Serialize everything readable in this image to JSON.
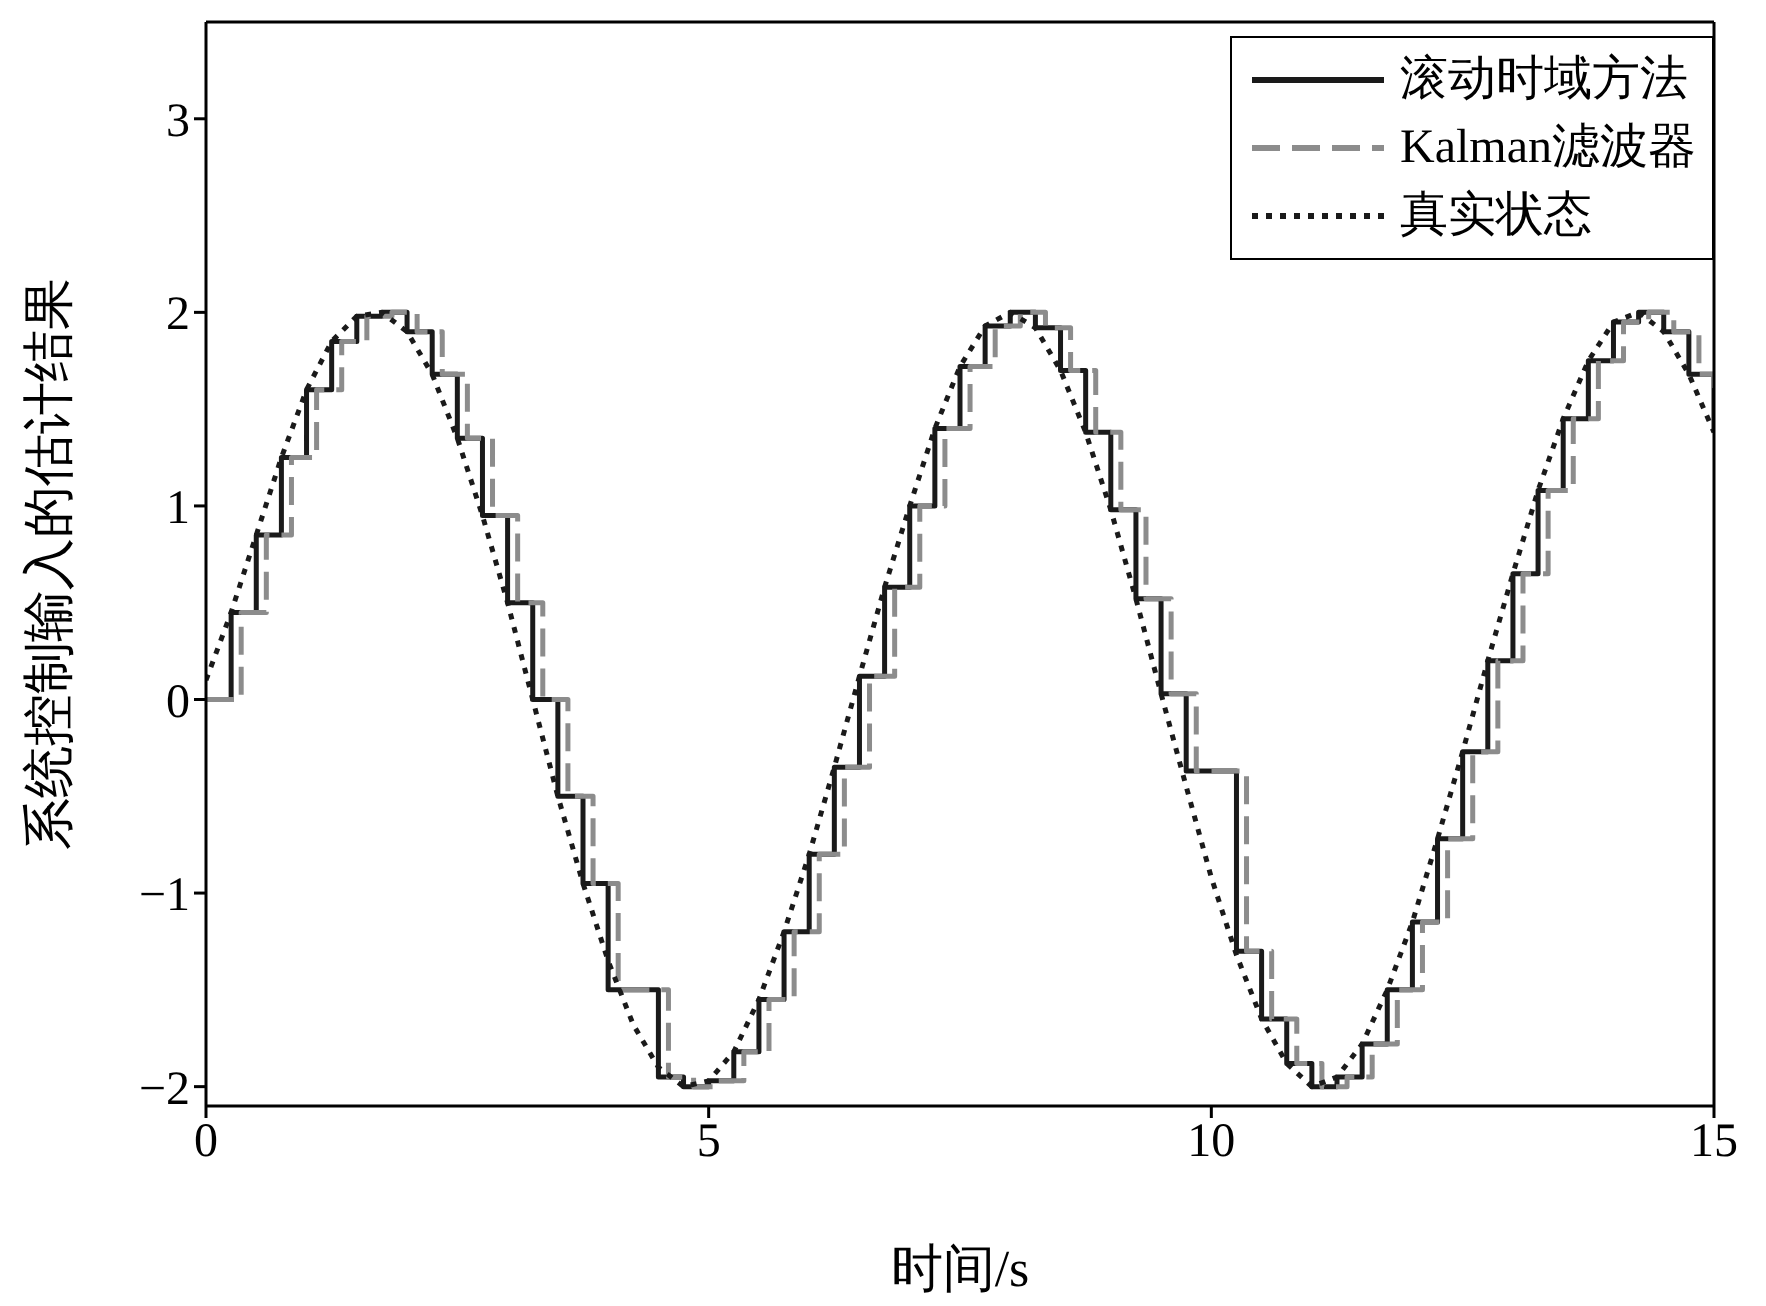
{
  "chart_data": {
    "type": "line",
    "xlabel": "时间/s",
    "ylabel": "系统控制输入的估计结果",
    "xlim": [
      0,
      15
    ],
    "xticks": [
      0,
      5,
      10,
      15
    ],
    "ylim": [
      -2.1,
      3.5
    ],
    "yticks": [
      {
        "value": -2,
        "label": "−2"
      },
      {
        "value": -1,
        "label": "−1"
      },
      0,
      1,
      2,
      3
    ],
    "legend": "top right",
    "marker": "none",
    "series": [
      {
        "name": "滚动时域方法",
        "type": "step",
        "color": "#1a1a1a",
        "line_style": "solid",
        "x": [
          0,
          0.25,
          0.5,
          0.75,
          1,
          1.25,
          1.5,
          1.75,
          2,
          2.25,
          2.5,
          2.75,
          3,
          3.25,
          3.5,
          3.75,
          4,
          4.25,
          4.5,
          4.75,
          5,
          5.25,
          5.5,
          5.75,
          6,
          6.25,
          6.5,
          6.75,
          7,
          7.25,
          7.5,
          7.75,
          8,
          8.25,
          8.5,
          8.75,
          9,
          9.25,
          9.5,
          9.75,
          10,
          10.25,
          10.5,
          10.75,
          11,
          11.25,
          11.5,
          11.75,
          12,
          12.25,
          12.5,
          12.75,
          13,
          13.25,
          13.5,
          13.75,
          14,
          14.25,
          14.5,
          14.75,
          15
        ],
        "values": [
          0,
          0.45,
          0.85,
          1.25,
          1.6,
          1.85,
          1.98,
          2.0,
          1.9,
          1.68,
          1.35,
          0.95,
          0.5,
          0.0,
          -0.5,
          -0.95,
          -1.5,
          -1.5,
          -1.95,
          -2.0,
          -1.97,
          -1.82,
          -1.55,
          -1.2,
          -0.8,
          -0.35,
          0.12,
          0.58,
          1.0,
          1.4,
          1.72,
          1.93,
          2.0,
          1.92,
          1.7,
          1.38,
          0.98,
          0.52,
          0.03,
          -0.37,
          -0.37,
          -1.3,
          -1.65,
          -1.88,
          -2.0,
          -1.95,
          -1.78,
          -1.5,
          -1.15,
          -0.72,
          -0.27,
          0.2,
          0.65,
          1.08,
          1.45,
          1.75,
          1.95,
          2.0,
          1.9,
          1.68,
          1.38
        ]
      },
      {
        "name": "Kalman滤波器",
        "type": "step",
        "color": "#8c8c8c",
        "line_style": "dashed",
        "x": [
          0,
          0.35,
          0.6,
          0.85,
          1.1,
          1.35,
          1.6,
          1.85,
          2.1,
          2.35,
          2.6,
          2.85,
          3.1,
          3.35,
          3.6,
          3.85,
          4.1,
          4.35,
          4.6,
          4.85,
          5.1,
          5.35,
          5.6,
          5.85,
          6.1,
          6.35,
          6.6,
          6.85,
          7.1,
          7.35,
          7.6,
          7.85,
          8.1,
          8.35,
          8.6,
          8.85,
          9.1,
          9.35,
          9.6,
          9.85,
          10.1,
          10.35,
          10.6,
          10.85,
          11.1,
          11.35,
          11.6,
          11.85,
          12.1,
          12.35,
          12.6,
          12.85,
          13.1,
          13.35,
          13.6,
          13.85,
          14.1,
          14.35,
          14.6,
          14.85,
          15
        ],
        "values": [
          0,
          0.45,
          0.85,
          1.25,
          1.6,
          1.85,
          1.98,
          2.0,
          1.9,
          1.68,
          1.35,
          0.95,
          0.5,
          0.0,
          -0.5,
          -0.95,
          -1.5,
          -1.5,
          -1.95,
          -2.0,
          -1.97,
          -1.82,
          -1.55,
          -1.2,
          -0.8,
          -0.35,
          0.12,
          0.58,
          1.0,
          1.4,
          1.72,
          1.93,
          2.0,
          1.92,
          1.7,
          1.38,
          0.98,
          0.52,
          0.03,
          -0.37,
          -0.37,
          -1.3,
          -1.65,
          -1.88,
          -2.0,
          -1.95,
          -1.78,
          -1.5,
          -1.15,
          -0.72,
          -0.27,
          0.2,
          0.65,
          1.08,
          1.45,
          1.75,
          1.95,
          2.0,
          1.9,
          1.68,
          1.55
        ]
      },
      {
        "name": "真实状态",
        "type": "line",
        "color": "#1a1a1a",
        "line_style": "dotted",
        "x": [
          0,
          0.25,
          0.5,
          0.75,
          1,
          1.25,
          1.5,
          1.75,
          2,
          2.25,
          2.5,
          2.75,
          3,
          3.25,
          3.5,
          3.75,
          4,
          4.25,
          4.5,
          4.75,
          5,
          5.25,
          5.5,
          5.75,
          6,
          6.25,
          6.5,
          6.75,
          7,
          7.25,
          7.5,
          7.75,
          8,
          8.25,
          8.5,
          8.75,
          9,
          9.25,
          9.5,
          9.75,
          10,
          10.25,
          10.5,
          10.75,
          11,
          11.25,
          11.5,
          11.75,
          12,
          12.25,
          12.5,
          12.75,
          13,
          13.25,
          13.5,
          13.75,
          14,
          14.25,
          14.5,
          14.75,
          15
        ],
        "values": [
          0.1,
          0.45,
          0.85,
          1.25,
          1.6,
          1.85,
          1.98,
          2.0,
          1.9,
          1.68,
          1.35,
          0.95,
          0.5,
          0.0,
          -0.5,
          -0.95,
          -1.35,
          -1.68,
          -1.9,
          -2.0,
          -1.97,
          -1.82,
          -1.55,
          -1.2,
          -0.8,
          -0.35,
          0.12,
          0.58,
          1.0,
          1.4,
          1.72,
          1.93,
          2.0,
          1.92,
          1.7,
          1.38,
          0.98,
          0.52,
          0.03,
          -0.45,
          -0.92,
          -1.32,
          -1.65,
          -1.88,
          -2.0,
          -1.95,
          -1.78,
          -1.5,
          -1.15,
          -0.72,
          -0.27,
          0.2,
          0.65,
          1.08,
          1.45,
          1.75,
          1.95,
          2.0,
          1.9,
          1.68,
          1.38
        ]
      }
    ]
  }
}
